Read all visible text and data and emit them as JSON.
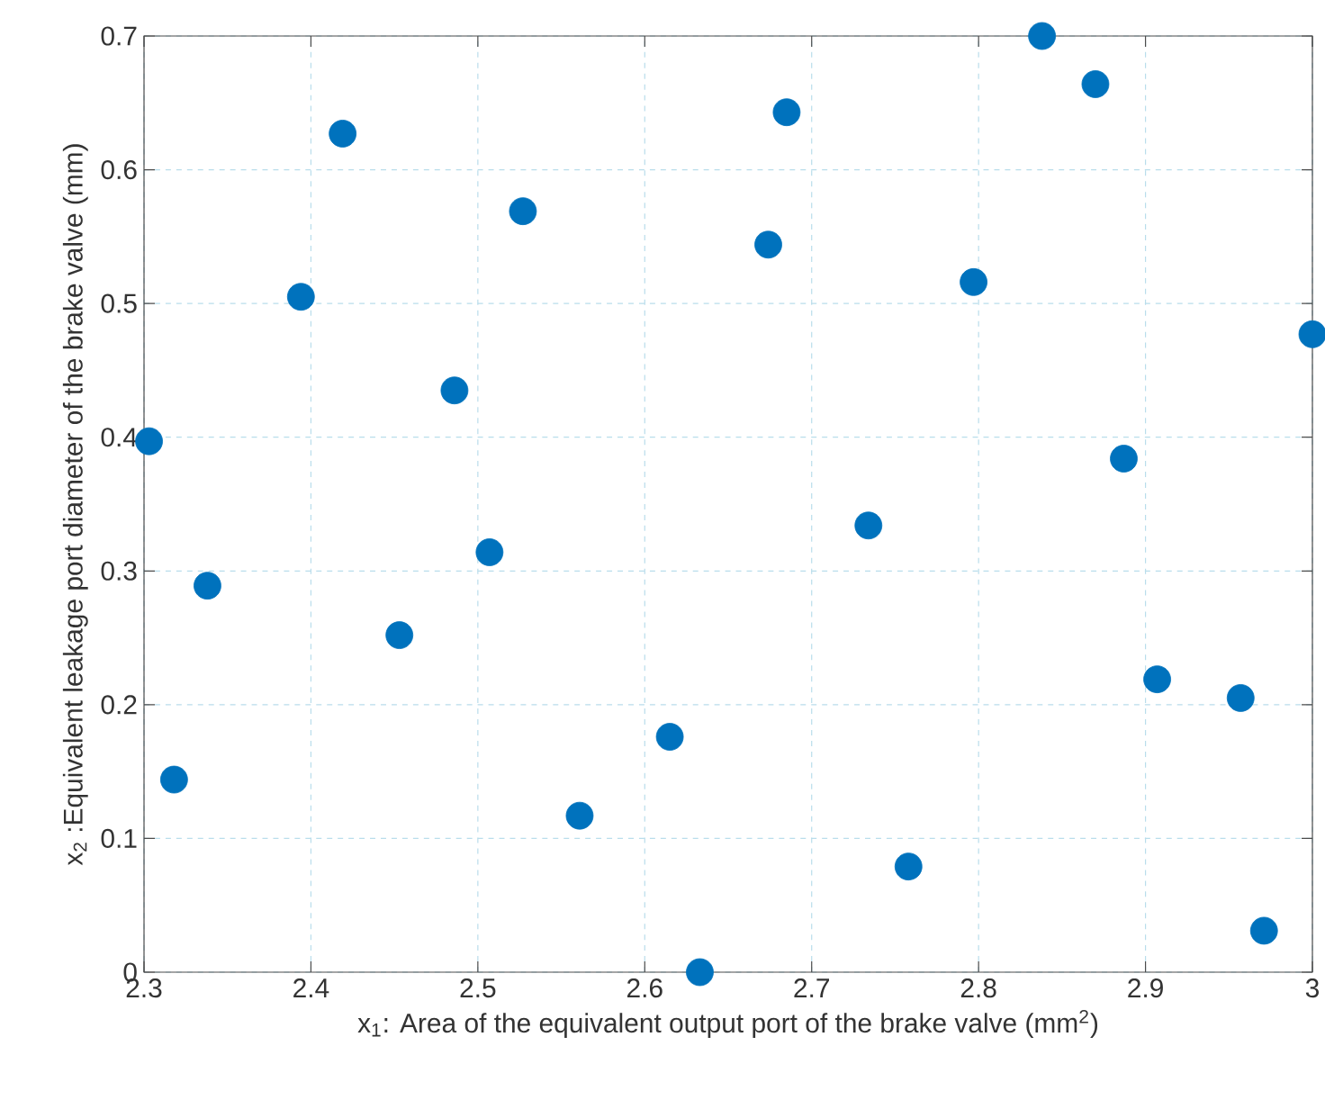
{
  "chart_data": {
    "type": "scatter",
    "xlabel": "x$_{1}$: Area of the equivalent output port of the brake valve (mm$^{2}$)",
    "ylabel": "x$_{2}$ :Equivalent leakage port diameter of the brake valve (mm)",
    "x": [
      2.303,
      2.318,
      2.338,
      2.394,
      2.419,
      2.453,
      2.486,
      2.507,
      2.527,
      2.561,
      2.615,
      2.633,
      2.674,
      2.685,
      2.734,
      2.758,
      2.797,
      2.838,
      2.87,
      2.887,
      2.907,
      2.957,
      2.971,
      3.0
    ],
    "values": [
      0.397,
      0.144,
      0.289,
      0.505,
      0.627,
      0.252,
      0.435,
      0.314,
      0.569,
      0.117,
      0.176,
      0,
      0.544,
      0.643,
      0.334,
      0.079,
      0.516,
      0.7,
      0.664,
      0.384,
      0.219,
      0.205,
      0.031,
      0.477
    ],
    "color": "#0072bd",
    "marker": "circle",
    "grid": true,
    "xlim": [
      2.3,
      3.0
    ],
    "xticks": [
      2.3,
      2.4,
      2.5,
      2.6,
      2.7,
      2.8,
      2.9,
      3
    ],
    "ylim": [
      0,
      0.7
    ],
    "yticks": [
      0,
      0.1,
      0.2,
      0.3,
      0.4,
      0.5,
      0.6,
      0.7
    ]
  }
}
